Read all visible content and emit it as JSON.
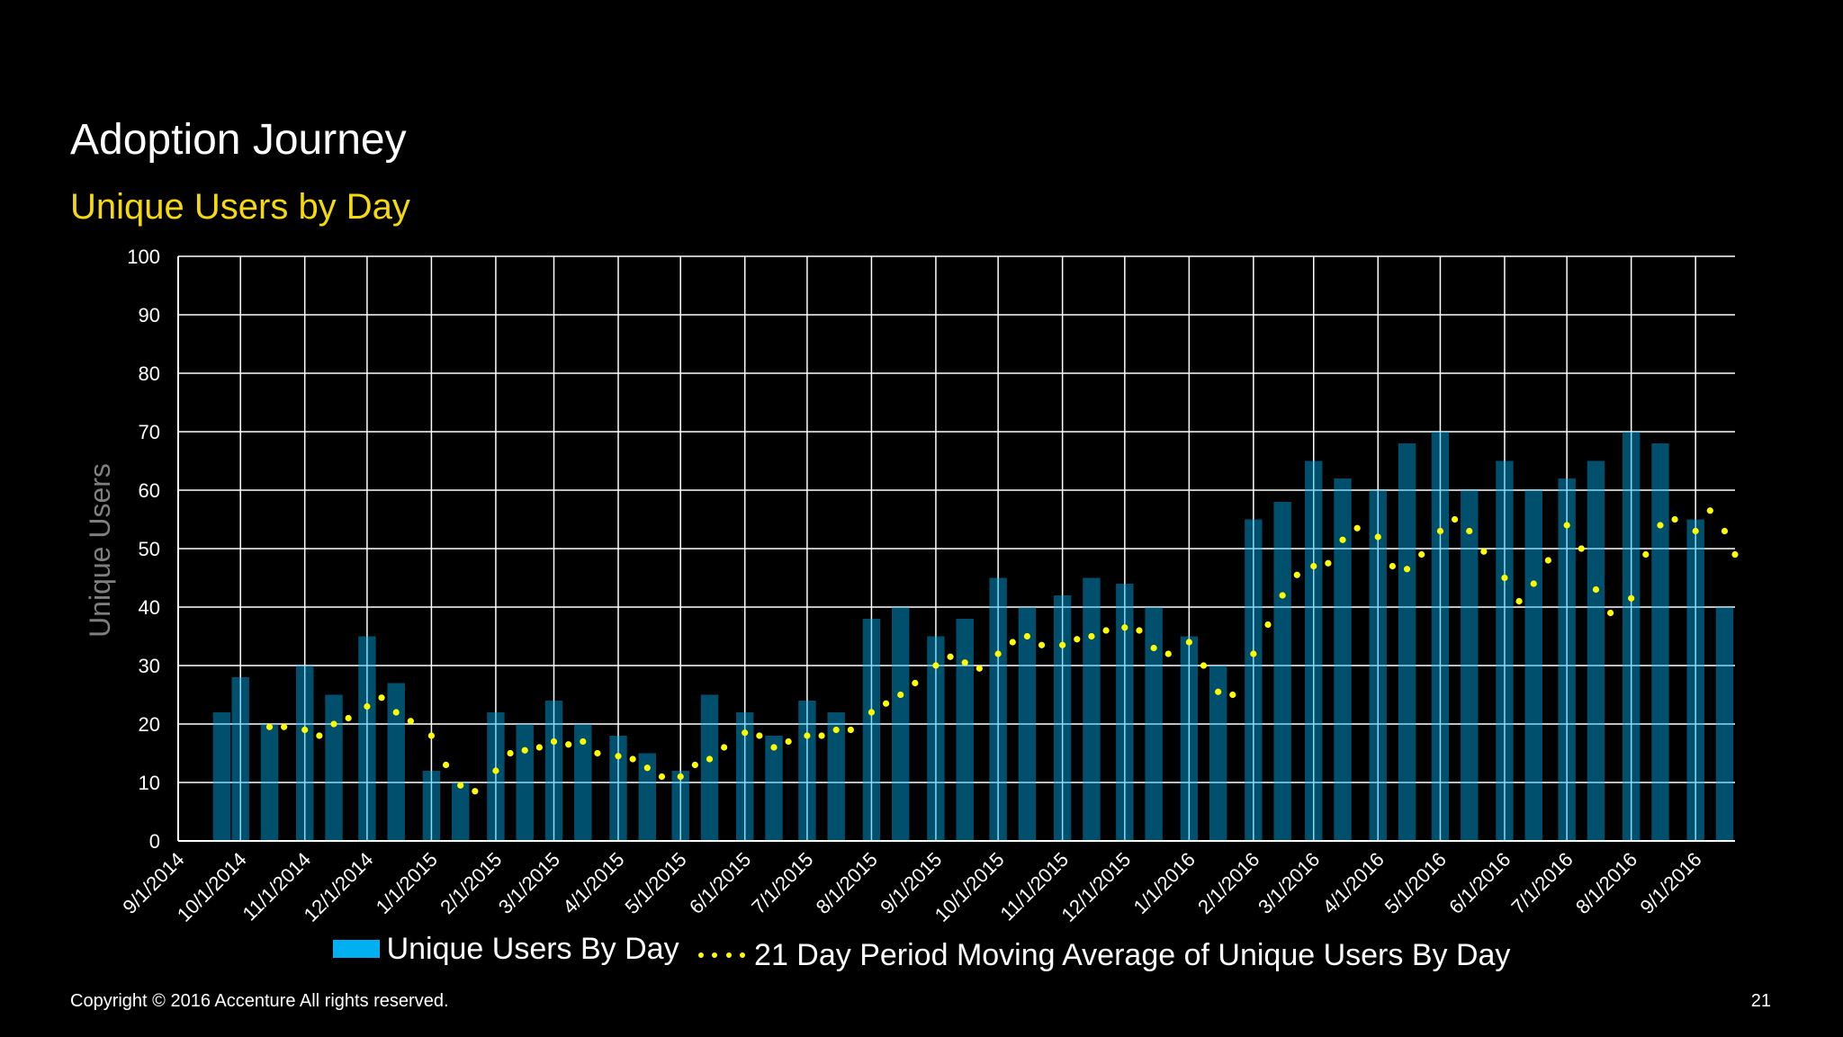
{
  "title": "Adoption Journey",
  "subtitle": "Unique Users by Day",
  "footer": "Copyright © 2016 Accenture  All rights reserved.",
  "page_number": "21",
  "chart_data": {
    "type": "bar",
    "ylabel": "Unique Users",
    "xlabel": "",
    "ylim": [
      0,
      100
    ],
    "yticks": [
      0,
      10,
      20,
      30,
      40,
      50,
      60,
      70,
      80,
      90,
      100
    ],
    "xlim": [
      "2014-09-01",
      "2016-09-20"
    ],
    "x_tick_labels": [
      "9/1/2014",
      "10/1/2014",
      "11/1/2014",
      "12/1/2014",
      "1/1/2015",
      "2/1/2015",
      "3/1/2015",
      "4/1/2015",
      "5/1/2015",
      "6/1/2015",
      "7/1/2015",
      "8/1/2015",
      "9/1/2015",
      "10/1/2015",
      "11/1/2015",
      "12/1/2015",
      "1/1/2016",
      "2/1/2016",
      "3/1/2016",
      "4/1/2016",
      "5/1/2016",
      "6/1/2016",
      "7/1/2016",
      "8/1/2016",
      "9/1/2016"
    ],
    "grid": true,
    "legend_position": "bottom",
    "colors": {
      "bars": "#00b0f0",
      "moving_average": "#ffff00",
      "grid": "#ffffff",
      "ylabel": "#7f7f7f"
    },
    "series": [
      {
        "name": "Unique Users By Day",
        "type": "bar",
        "x": [
          "2014-09-22",
          "2014-10-01",
          "2014-10-15",
          "2014-11-01",
          "2014-11-15",
          "2014-12-01",
          "2014-12-15",
          "2015-01-01",
          "2015-01-15",
          "2015-02-01",
          "2015-02-15",
          "2015-03-01",
          "2015-03-15",
          "2015-04-01",
          "2015-04-15",
          "2015-05-01",
          "2015-05-15",
          "2015-06-01",
          "2015-06-15",
          "2015-07-01",
          "2015-07-15",
          "2015-08-01",
          "2015-08-15",
          "2015-09-01",
          "2015-09-15",
          "2015-10-01",
          "2015-10-15",
          "2015-11-01",
          "2015-11-15",
          "2015-12-01",
          "2015-12-15",
          "2016-01-01",
          "2016-01-15",
          "2016-02-01",
          "2016-02-15",
          "2016-03-01",
          "2016-03-15",
          "2016-04-01",
          "2016-04-15",
          "2016-05-01",
          "2016-05-15",
          "2016-06-01",
          "2016-06-15",
          "2016-07-01",
          "2016-07-15",
          "2016-08-01",
          "2016-08-15",
          "2016-09-01",
          "2016-09-15"
        ],
        "values": [
          22,
          28,
          20,
          30,
          25,
          35,
          27,
          12,
          10,
          22,
          20,
          24,
          20,
          18,
          15,
          12,
          25,
          22,
          18,
          24,
          22,
          38,
          40,
          35,
          38,
          45,
          40,
          42,
          45,
          44,
          40,
          35,
          30,
          55,
          58,
          65,
          62,
          60,
          68,
          70,
          60,
          65,
          60,
          62,
          65,
          70,
          68,
          55,
          40
        ]
      },
      {
        "name": "21 Day Period Moving Average of Unique Users By Day",
        "type": "line",
        "x": [
          "2014-10-15",
          "2014-10-22",
          "2014-11-01",
          "2014-11-08",
          "2014-11-15",
          "2014-11-22",
          "2014-12-01",
          "2014-12-08",
          "2014-12-15",
          "2014-12-22",
          "2015-01-01",
          "2015-01-08",
          "2015-01-15",
          "2015-01-22",
          "2015-02-01",
          "2015-02-08",
          "2015-02-15",
          "2015-02-22",
          "2015-03-01",
          "2015-03-08",
          "2015-03-15",
          "2015-03-22",
          "2015-04-01",
          "2015-04-08",
          "2015-04-15",
          "2015-04-22",
          "2015-05-01",
          "2015-05-08",
          "2015-05-15",
          "2015-05-22",
          "2015-06-01",
          "2015-06-08",
          "2015-06-15",
          "2015-06-22",
          "2015-07-01",
          "2015-07-08",
          "2015-07-15",
          "2015-07-22",
          "2015-08-01",
          "2015-08-08",
          "2015-08-15",
          "2015-08-22",
          "2015-09-01",
          "2015-09-08",
          "2015-09-15",
          "2015-09-22",
          "2015-10-01",
          "2015-10-08",
          "2015-10-15",
          "2015-10-22",
          "2015-11-01",
          "2015-11-08",
          "2015-11-15",
          "2015-11-22",
          "2015-12-01",
          "2015-12-08",
          "2015-12-15",
          "2015-12-22",
          "2016-01-01",
          "2016-01-08",
          "2016-01-15",
          "2016-01-22",
          "2016-02-01",
          "2016-02-08",
          "2016-02-15",
          "2016-02-22",
          "2016-03-01",
          "2016-03-08",
          "2016-03-15",
          "2016-03-22",
          "2016-04-01",
          "2016-04-08",
          "2016-04-15",
          "2016-04-22",
          "2016-05-01",
          "2016-05-08",
          "2016-05-15",
          "2016-05-22",
          "2016-06-01",
          "2016-06-08",
          "2016-06-15",
          "2016-06-22",
          "2016-07-01",
          "2016-07-08",
          "2016-07-15",
          "2016-07-22",
          "2016-08-01",
          "2016-08-08",
          "2016-08-15",
          "2016-08-22",
          "2016-09-01",
          "2016-09-08",
          "2016-09-15",
          "2016-09-20"
        ],
        "values": [
          19.5,
          19.5,
          19,
          18,
          20,
          21,
          23,
          24.5,
          22,
          20.5,
          18,
          13,
          9.5,
          8.5,
          12,
          15,
          15.5,
          16,
          17,
          16.5,
          17,
          15,
          14.5,
          14,
          12.5,
          11,
          11,
          13,
          14,
          16,
          18.5,
          18,
          16,
          17,
          18,
          18,
          19,
          19,
          22,
          23.5,
          25,
          27,
          30,
          31.5,
          30.5,
          29.5,
          32,
          34,
          35,
          33.5,
          33.5,
          34.5,
          35,
          36,
          36.5,
          36,
          33,
          32,
          34,
          30,
          25.5,
          25,
          32,
          37,
          42,
          45.5,
          47,
          47.5,
          51.5,
          53.5,
          52,
          47,
          46.5,
          49,
          53,
          55,
          53,
          49.5,
          45,
          41,
          44,
          48,
          54,
          50,
          43,
          39,
          41.5,
          49,
          54,
          55,
          53,
          56.5,
          53,
          49
        ]
      }
    ]
  },
  "legend": {
    "bars_label": "Unique Users By Day",
    "line_label": "21 Day Period Moving Average of Unique Users By Day"
  }
}
